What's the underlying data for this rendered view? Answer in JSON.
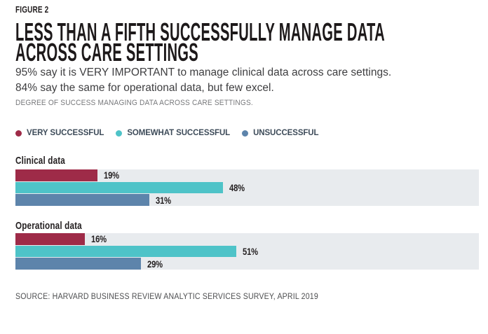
{
  "header": {
    "figure_label": "FIGURE 2",
    "title_line1": "LESS THAN A FIFTH SUCCESSFULLY MANAGE DATA",
    "title_line2": "ACROSS CARE SETTINGS",
    "subtitle_line1": "95% say it is VERY IMPORTANT to manage clinical data across care settings.",
    "subtitle_line2": "84% say the same for operational data, but few excel.",
    "caption": "DEGREE OF SUCCESS MANAGING DATA ACROSS CARE SETTINGS."
  },
  "footer": {
    "source": "SOURCE: HARVARD BUSINESS REVIEW ANALYTIC SERVICES SURVEY, APRIL 2019"
  },
  "colors": {
    "very_successful": "#9e2b48",
    "somewhat_successful": "#4ec3c8",
    "unsuccessful": "#5d84ab",
    "track_background": "#e8ebee",
    "legend_text": "#3d4b59"
  },
  "chart_data": {
    "type": "bar",
    "orientation": "horizontal",
    "value_unit": "percent",
    "title": "DEGREE OF SUCCESS MANAGING DATA ACROSS CARE SETTINGS.",
    "legend_position": "top",
    "grid": false,
    "categories": [
      "Clinical data",
      "Operational data"
    ],
    "series": [
      {
        "name": "VERY SUCCESSFUL",
        "color": "#9e2b48",
        "values": [
          19,
          16
        ]
      },
      {
        "name": "SOMEWHAT SUCCESSFUL",
        "color": "#4ec3c8",
        "values": [
          48,
          51
        ]
      },
      {
        "name": "UNSUCCESSFUL",
        "color": "#5d84ab",
        "values": [
          31,
          29
        ]
      }
    ],
    "value_labels": {
      "Clinical data": [
        "19%",
        "48%",
        "31%"
      ],
      "Operational data": [
        "16%",
        "51%",
        "29%"
      ]
    }
  }
}
